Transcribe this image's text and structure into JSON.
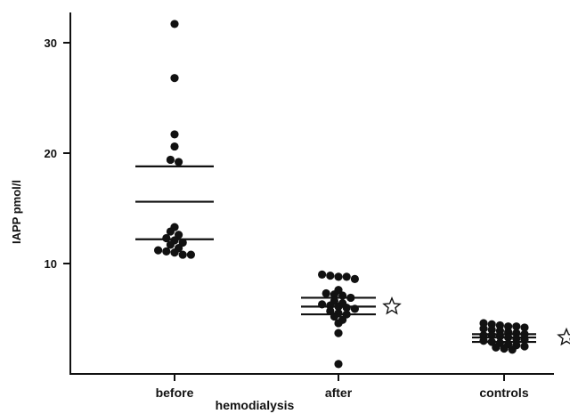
{
  "chart_data": {
    "type": "scatter",
    "title": "",
    "ylabel": "IAPP pmol/l",
    "xlabel": "",
    "group_label": "hemodialysis",
    "ylim": [
      0,
      34
    ],
    "yticks": [
      10,
      20,
      30
    ],
    "ytick_labels": [
      "10",
      "20",
      "30"
    ],
    "grid": false,
    "categories": [
      "before",
      "after",
      "controls"
    ],
    "groups": [
      {
        "category": "before",
        "points": [
          31.7,
          26.8,
          21.7,
          20.6,
          19.4,
          19.2,
          13.3,
          12.9,
          12.6,
          12.3,
          12.1,
          11.9,
          11.7,
          11.4,
          11.2,
          11.1,
          11.0,
          10.8,
          10.8
        ],
        "mean": 15.6,
        "sd_upper": 18.8,
        "sd_lower": 12.2,
        "significance_marker": false
      },
      {
        "category": "after",
        "points": [
          9.0,
          8.9,
          8.8,
          8.8,
          8.6,
          7.6,
          7.3,
          7.2,
          7.1,
          6.9,
          6.6,
          6.4,
          6.3,
          6.2,
          6.1,
          6.0,
          5.9,
          5.7,
          5.5,
          5.4,
          5.2,
          4.9,
          4.6,
          3.7,
          0.9
        ],
        "mean": 6.1,
        "sd_upper": 6.9,
        "sd_lower": 5.4,
        "significance_marker": true
      },
      {
        "category": "controls",
        "points": [
          4.6,
          4.5,
          4.4,
          4.3,
          4.3,
          4.2,
          4.1,
          4.0,
          3.9,
          3.8,
          3.7,
          3.6,
          3.5,
          3.5,
          3.4,
          3.3,
          3.2,
          3.1,
          3.0,
          2.9,
          2.8,
          2.7,
          2.6,
          2.5,
          2.4,
          2.3,
          2.2
        ],
        "mean": 3.3,
        "sd_upper": 3.6,
        "sd_lower": 2.9,
        "significance_marker": true
      }
    ]
  }
}
